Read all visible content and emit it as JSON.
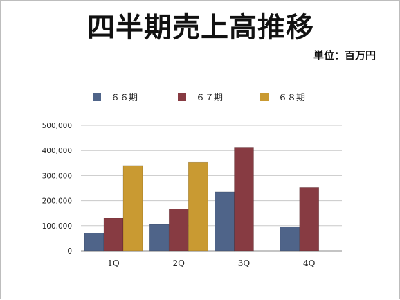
{
  "slide": {
    "title": "四半期売上高推移",
    "unit_label": "単位：百万円"
  },
  "colors": {
    "series_66": "#4f6489",
    "series_67": "#873b42",
    "series_68": "#c99a32",
    "gridline": "#c8c8c8",
    "axis": "#888888"
  },
  "chart_data": {
    "type": "bar",
    "categories": [
      "1Q",
      "2Q",
      "3Q",
      "4Q"
    ],
    "series": [
      {
        "name": "６６期",
        "values": [
          70000,
          105000,
          235000,
          95000
        ]
      },
      {
        "name": "６７期",
        "values": [
          130000,
          167000,
          413000,
          253000
        ]
      },
      {
        "name": "６８期",
        "values": [
          340000,
          353000,
          null,
          null
        ]
      }
    ],
    "yticks": [
      "0",
      "100,000",
      "200,000",
      "300,000",
      "400,000",
      "500,000"
    ],
    "ylim": [
      0,
      500000
    ],
    "grid": true,
    "legend_position": "top",
    "xlabel": "",
    "ylabel": ""
  }
}
